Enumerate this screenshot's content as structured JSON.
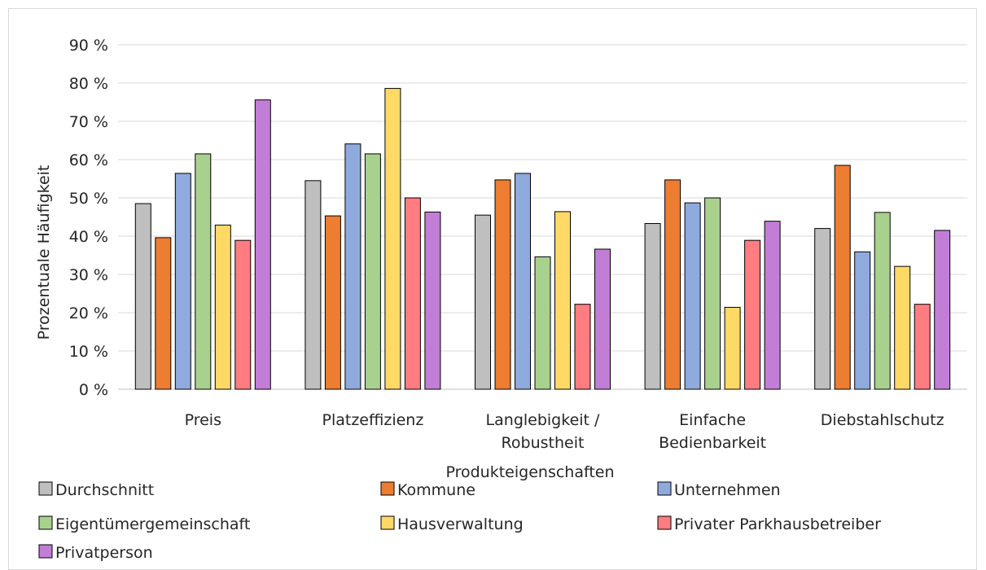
{
  "chart_data": {
    "type": "bar",
    "title": "",
    "xlabel": "Produkteigenschaften",
    "ylabel": "Prozentuale Häufigkeit",
    "ylim": [
      0,
      90
    ],
    "y_ticks": [
      "0 %",
      "10 %",
      "20 %",
      "30 %",
      "40 %",
      "50 %",
      "60 %",
      "70 %",
      "80 %",
      "90 %"
    ],
    "grid": true,
    "legend_position": "bottom",
    "categories": [
      [
        "Preis"
      ],
      [
        "Platzeffizienz"
      ],
      [
        "Langlebigkeit /",
        "Robustheit"
      ],
      [
        "Einfache",
        "Bedienbarkeit"
      ],
      [
        "Diebstahlschutz"
      ]
    ],
    "series": [
      {
        "name": "Durchschnitt",
        "color": "#bfbfbf",
        "values": [
          48.5,
          54.5,
          45.5,
          43.3,
          42.0
        ]
      },
      {
        "name": "Kommune",
        "color": "#ed7d31",
        "values": [
          39.6,
          45.3,
          54.7,
          54.7,
          58.5
        ]
      },
      {
        "name": "Unternehmen",
        "color": "#8faadc",
        "values": [
          56.4,
          64.1,
          56.4,
          48.7,
          35.9
        ]
      },
      {
        "name": "Eigentümergemeinschaft",
        "color": "#a9d18e",
        "values": [
          61.5,
          61.5,
          34.6,
          50.0,
          46.2
        ]
      },
      {
        "name": "Hausverwaltung",
        "color": "#ffd966",
        "values": [
          42.9,
          78.6,
          46.4,
          21.4,
          32.1
        ]
      },
      {
        "name": "Privater Parkhausbetreiber",
        "color": "#ff7c80",
        "values": [
          38.9,
          50.0,
          22.2,
          38.9,
          22.2
        ]
      },
      {
        "name": "Privatperson",
        "color": "#c27ed6",
        "values": [
          75.6,
          46.3,
          36.6,
          43.9,
          41.5
        ]
      }
    ]
  }
}
